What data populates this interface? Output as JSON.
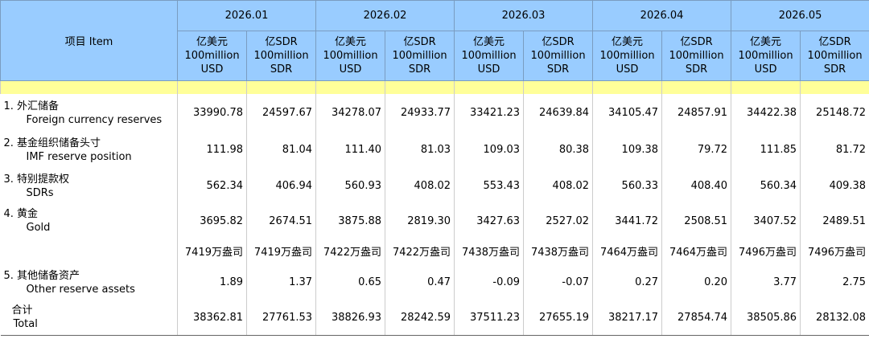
{
  "header": {
    "item": "项目 Item",
    "months": [
      "2026.01",
      "2026.02",
      "2026.03",
      "2026.04",
      "2026.05"
    ],
    "units": [
      [
        "亿美元",
        "100million",
        "USD"
      ],
      [
        "亿SDR",
        "100million",
        "SDR"
      ]
    ]
  },
  "rows": [
    {
      "cn": "1.  外汇储备",
      "en": "Foreign currency reserves",
      "values": [
        "33990.78",
        "24597.67",
        "34278.07",
        "24933.77",
        "33421.23",
        "24639.84",
        "34105.47",
        "24857.91",
        "34422.38",
        "25148.72"
      ]
    },
    {
      "cn": "2.  基金组织储备头寸",
      "en": "IMF reserve position",
      "values": [
        "111.98",
        "81.04",
        "111.40",
        "81.03",
        "109.03",
        "80.38",
        "109.38",
        "79.72",
        "111.85",
        "81.72"
      ]
    },
    {
      "cn": "3.  特别提款权",
      "en": "SDRs",
      "values": [
        "562.34",
        "406.94",
        "560.93",
        "408.02",
        "553.43",
        "408.02",
        "560.33",
        "408.40",
        "560.34",
        "409.38"
      ]
    },
    {
      "cn": "4.  黄金",
      "en": "Gold",
      "values": [
        "3695.82",
        "2674.51",
        "3875.88",
        "2819.30",
        "3427.63",
        "2527.02",
        "3441.72",
        "2508.51",
        "3407.52",
        "2489.51"
      ]
    },
    {
      "values": [
        "7419万盎司",
        "7419万盎司",
        "7422万盎司",
        "7422万盎司",
        "7438万盎司",
        "7438万盎司",
        "7464万盎司",
        "7464万盎司",
        "7496万盎司",
        "7496万盎司"
      ]
    },
    {
      "cn": "5.  其他储备资产",
      "en": "Other reserve assets",
      "values": [
        "1.89",
        "1.37",
        "0.65",
        "0.47",
        "-0.09",
        "-0.07",
        "0.27",
        "0.20",
        "3.77",
        "2.75"
      ]
    },
    {
      "cn": "合计",
      "en": "Total",
      "values": [
        "38362.81",
        "27761.53",
        "38826.93",
        "28242.59",
        "37511.23",
        "27655.19",
        "38217.17",
        "27854.74",
        "38505.86",
        "28132.08"
      ]
    }
  ]
}
